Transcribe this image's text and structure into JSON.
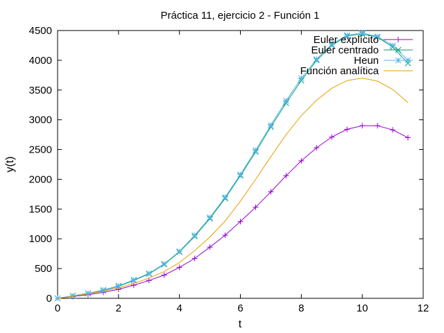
{
  "chart_data": {
    "type": "line",
    "title": "Práctica 11, ejercicio 2 - Función 1",
    "xlabel": "t",
    "ylabel": "y(t)",
    "xlim": [
      0,
      12
    ],
    "ylim": [
      0,
      4500
    ],
    "xticks": [
      0,
      2,
      4,
      6,
      8,
      10,
      12
    ],
    "yticks": [
      0,
      500,
      1000,
      1500,
      2000,
      2500,
      3000,
      3500,
      4000,
      4500
    ],
    "grid": false,
    "legend_position": "top-right",
    "series": [
      {
        "name": "Euler explícito",
        "color": "#9400d3",
        "marker": "plus",
        "x": [
          0,
          0.5,
          1,
          1.5,
          2,
          2.5,
          3,
          3.5,
          4,
          4.5,
          5,
          5.5,
          6,
          6.5,
          7,
          7.5,
          8,
          8.5,
          9,
          9.5,
          10,
          10.5,
          11,
          11.5
        ],
        "y": [
          0,
          30,
          60,
          100,
          150,
          220,
          300,
          390,
          520,
          670,
          860,
          1060,
          1290,
          1530,
          1790,
          2060,
          2310,
          2530,
          2710,
          2840,
          2900,
          2900,
          2830,
          2700
        ]
      },
      {
        "name": "Euler centrado",
        "color": "#009e73",
        "marker": "x",
        "x": [
          0,
          0.5,
          1,
          1.5,
          2,
          2.5,
          3,
          3.5,
          4,
          4.5,
          5,
          5.5,
          6,
          6.5,
          7,
          7.5,
          8,
          8.5,
          9,
          9.5,
          10,
          10.5,
          11,
          11.5
        ],
        "y": [
          0,
          40,
          80,
          130,
          200,
          300,
          410,
          570,
          780,
          1040,
          1340,
          1680,
          2060,
          2460,
          2880,
          3280,
          3660,
          4000,
          4250,
          4410,
          4440,
          4390,
          4220,
          3950
        ]
      },
      {
        "name": "Heun",
        "color": "#56b4e9",
        "marker": "star",
        "x": [
          0,
          0.5,
          1,
          1.5,
          2,
          2.5,
          3,
          3.5,
          4,
          4.5,
          5,
          5.5,
          6,
          6.5,
          7,
          7.5,
          8,
          8.5,
          9,
          9.5,
          10,
          10.5,
          11,
          11.5
        ],
        "y": [
          0,
          45,
          85,
          140,
          210,
          310,
          420,
          580,
          790,
          1060,
          1360,
          1700,
          2080,
          2490,
          2910,
          3320,
          3700,
          4020,
          4270,
          4420,
          4460,
          4400,
          4250,
          4000
        ]
      },
      {
        "name": "Función analítica",
        "color": "#e69f00",
        "marker": "none",
        "x": [
          0,
          0.5,
          1,
          1.5,
          2,
          2.5,
          3,
          3.5,
          4,
          4.5,
          5,
          5.5,
          6,
          6.5,
          7,
          7.5,
          8,
          8.5,
          9,
          9.5,
          10,
          10.5,
          11,
          11.5
        ],
        "y": [
          0,
          35,
          75,
          120,
          175,
          250,
          340,
          450,
          600,
          800,
          1030,
          1300,
          1630,
          2000,
          2380,
          2750,
          3070,
          3330,
          3530,
          3660,
          3700,
          3650,
          3510,
          3290
        ]
      }
    ]
  }
}
